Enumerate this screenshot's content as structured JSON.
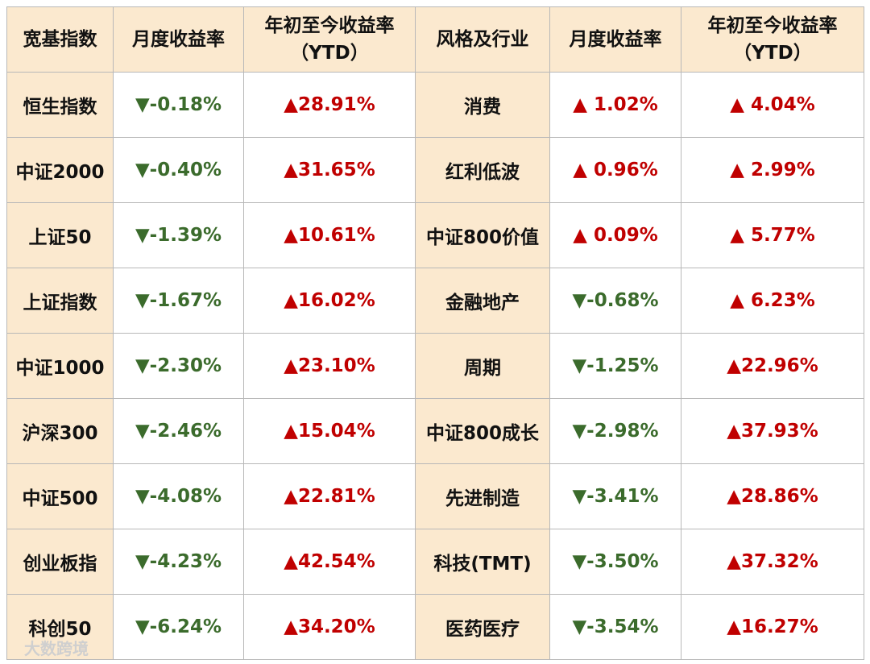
{
  "table": {
    "header": [
      "宽基指数",
      "月度收益率",
      "年初至今收益率\n（YTD）",
      "风格及行业",
      "月度收益率",
      "年初至今收益率\n（YTD）"
    ],
    "rows": [
      [
        "恒生指数",
        "▼-0.18%",
        "▲28.91%",
        "消费",
        "▲ 1.02%",
        "▲ 4.04%"
      ],
      [
        "中证2000",
        "▼-0.40%",
        "▲31.65%",
        "红利低波",
        "▲ 0.96%",
        "▲ 2.99%"
      ],
      [
        "上证50",
        "▼-1.39%",
        "▲10.61%",
        "中证800价值",
        "▲ 0.09%",
        "▲ 5.77%"
      ],
      [
        "上证指数",
        "▼-1.67%",
        "▲16.02%",
        "金融地产",
        "▼-0.68%",
        "▲ 6.23%"
      ],
      [
        "中证1000",
        "▼-2.30%",
        "▲23.10%",
        "周期",
        "▼-1.25%",
        "▲22.96%"
      ],
      [
        "沪深300",
        "▼-2.46%",
        "▲15.04%",
        "中证800成长",
        "▼-2.98%",
        "▲37.93%"
      ],
      [
        "中证500",
        "▼-4.08%",
        "▲22.81%",
        "先进制造",
        "▼-3.41%",
        "▲28.86%"
      ],
      [
        "创业板指",
        "▼-4.23%",
        "▲42.54%",
        "科技(TMT)",
        "▼-3.50%",
        "▲37.32%"
      ],
      [
        "科创50",
        "▼-6.24%",
        "▲34.20%",
        "医药医疗",
        "▼-3.54%",
        "▲16.27%"
      ]
    ]
  },
  "watermark": "大数跨境"
}
